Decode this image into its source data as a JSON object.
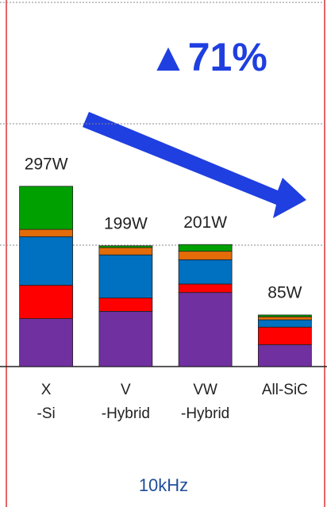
{
  "chart_data": {
    "type": "stacked-bar",
    "categories": [
      [
        "X",
        "-Si"
      ],
      [
        "V",
        "-Hybrid"
      ],
      [
        "VW",
        "-Hybrid"
      ],
      [
        "All-SiC"
      ]
    ],
    "series": [
      {
        "color": "#7030a0",
        "values": [
          79,
          91,
          122,
          36
        ]
      },
      {
        "color": "#ff0000",
        "values": [
          55,
          22,
          14,
          29
        ]
      },
      {
        "color": "#0070c0",
        "values": [
          80,
          71,
          40,
          12
        ]
      },
      {
        "color": "#e36c09",
        "values": [
          12,
          12,
          14,
          5
        ]
      },
      {
        "color": "#00a000",
        "values": [
          71,
          3,
          11,
          3
        ]
      }
    ],
    "totals": {
      "values": [
        297,
        199,
        201,
        85
      ],
      "value_labels": [
        "297W",
        "199W",
        "201W",
        "85W"
      ]
    },
    "ylim": [
      0,
      600
    ],
    "yticks": [
      0,
      200,
      400,
      600
    ],
    "grid": true,
    "annotation": "▲71%",
    "footer": "10kHz"
  }
}
